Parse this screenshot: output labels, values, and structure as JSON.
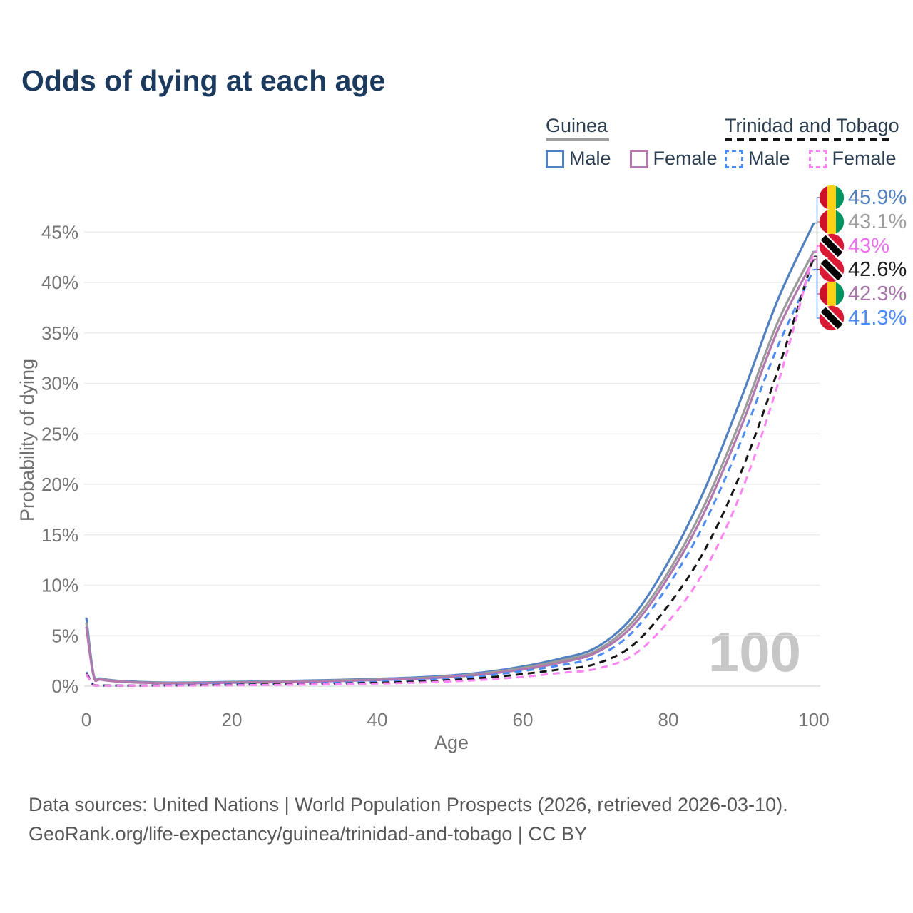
{
  "title": "Odds of dying at each age",
  "legend": {
    "groups": [
      {
        "title": "Guinea",
        "line_style": "solid",
        "underline_color": "#9e9e9e",
        "items": [
          {
            "label": "Male",
            "color": "#5181c1"
          },
          {
            "label": "Female",
            "color": "#b178ad"
          }
        ]
      },
      {
        "title": "Trinidad and Tobago",
        "line_style": "dashed",
        "underline_color": "#151515",
        "items": [
          {
            "label": "Male",
            "color": "#4d8cf5"
          },
          {
            "label": "Female",
            "color": "#fb85f3"
          }
        ]
      }
    ]
  },
  "chart_data": {
    "type": "line",
    "title": "Odds of dying at each age",
    "xlabel": "Age",
    "ylabel": "Probability of dying",
    "xlim": [
      0,
      100
    ],
    "ylim_percent": [
      0,
      47
    ],
    "grid": true,
    "legend_position": "top-right",
    "x_ticks": [
      0,
      20,
      40,
      60,
      80,
      100
    ],
    "y_ticks": [
      {
        "value": 0,
        "label": "0%"
      },
      {
        "value": 5,
        "label": "5%"
      },
      {
        "value": 10,
        "label": "10%"
      },
      {
        "value": 15,
        "label": "15%"
      },
      {
        "value": 20,
        "label": "20%"
      },
      {
        "value": 25,
        "label": "25%"
      },
      {
        "value": 30,
        "label": "30%"
      },
      {
        "value": 35,
        "label": "35%"
      },
      {
        "value": 40,
        "label": "40%"
      },
      {
        "value": 45,
        "label": "45%"
      }
    ],
    "ages": [
      0,
      1,
      2,
      5,
      10,
      15,
      20,
      25,
      30,
      35,
      40,
      45,
      50,
      55,
      60,
      65,
      70,
      75,
      80,
      85,
      90,
      95,
      100
    ],
    "series": [
      {
        "id": "guinea_male",
        "name": "Guinea Male",
        "country": "Guinea",
        "sex": "Male",
        "color": "#5181c1",
        "dash": "solid",
        "values_percent": [
          6.8,
          1.15,
          0.75,
          0.5,
          0.36,
          0.36,
          0.42,
          0.48,
          0.55,
          0.62,
          0.72,
          0.85,
          1.05,
          1.4,
          1.95,
          2.7,
          3.8,
          6.8,
          12.3,
          19.5,
          28.5,
          38.2,
          45.9
        ],
        "end_label": "45.9%"
      },
      {
        "id": "guinea_both",
        "name": "Guinea",
        "country": "Guinea",
        "sex": "Both",
        "color": "#9b9b9b",
        "dash": "solid",
        "values_percent": [
          6.3,
          1.05,
          0.7,
          0.46,
          0.33,
          0.32,
          0.38,
          0.43,
          0.5,
          0.57,
          0.66,
          0.78,
          0.97,
          1.3,
          1.8,
          2.5,
          3.5,
          6.3,
          11.3,
          18.0,
          26.5,
          36.0,
          43.1
        ],
        "end_label": "43.1%"
      },
      {
        "id": "guinea_female",
        "name": "Guinea Female",
        "country": "Guinea",
        "sex": "Female",
        "color": "#b178ad",
        "dash": "solid",
        "values_percent": [
          5.9,
          1.0,
          0.65,
          0.42,
          0.3,
          0.29,
          0.34,
          0.38,
          0.44,
          0.51,
          0.6,
          0.72,
          0.9,
          1.2,
          1.65,
          2.3,
          3.3,
          5.9,
          10.8,
          17.3,
          25.7,
          35.2,
          42.3
        ],
        "end_label": "42.3%"
      },
      {
        "id": "tt_male",
        "name": "Trinidad and Tobago Male",
        "country": "Trinidad and Tobago",
        "sex": "Male",
        "color": "#4d8cf5",
        "dash": "dashed",
        "values_percent": [
          1.4,
          0.12,
          0.08,
          0.06,
          0.08,
          0.12,
          0.18,
          0.22,
          0.27,
          0.33,
          0.42,
          0.55,
          0.75,
          1.05,
          1.5,
          2.05,
          2.9,
          5.3,
          10.0,
          16.2,
          24.3,
          33.6,
          41.3
        ],
        "end_label": "41.3%"
      },
      {
        "id": "tt_both",
        "name": "Trinidad and Tobago",
        "country": "Trinidad and Tobago",
        "sex": "Both",
        "color": "#161616",
        "dash": "dashed",
        "values_percent": [
          1.3,
          0.11,
          0.07,
          0.055,
          0.065,
          0.09,
          0.13,
          0.17,
          0.21,
          0.26,
          0.33,
          0.44,
          0.6,
          0.85,
          1.2,
          1.65,
          2.2,
          4.0,
          8.0,
          13.5,
          21.2,
          31.2,
          42.6
        ],
        "end_label": "42.6%"
      },
      {
        "id": "tt_female",
        "name": "Trinidad and Tobago Female",
        "country": "Trinidad and Tobago",
        "sex": "Female",
        "color": "#fb85f3",
        "dash": "dashed",
        "values_percent": [
          1.2,
          0.1,
          0.06,
          0.05,
          0.055,
          0.075,
          0.09,
          0.12,
          0.16,
          0.2,
          0.26,
          0.34,
          0.47,
          0.65,
          0.92,
          1.3,
          1.7,
          3.0,
          6.4,
          11.5,
          19.2,
          29.8,
          43.0
        ],
        "end_label": "43%"
      }
    ],
    "annotation": {
      "text": "100",
      "color": "#c7c7c7"
    }
  },
  "end_labels": [
    {
      "series": "guinea_male",
      "value": "45.9%",
      "color": "#5181c1",
      "flag": "guinea"
    },
    {
      "series": "guinea_both",
      "value": "43.1%",
      "color": "#9e9e9e",
      "flag": "guinea"
    },
    {
      "series": "tt_female",
      "value": "43%",
      "color": "#ef6ff0",
      "flag": "tt"
    },
    {
      "series": "tt_both",
      "value": "42.6%",
      "color": "#1f1f1f",
      "flag": "tt"
    },
    {
      "series": "guinea_female",
      "value": "42.3%",
      "color": "#a774a9",
      "flag": "guinea"
    },
    {
      "series": "tt_male",
      "value": "41.3%",
      "color": "#4a8bf5",
      "flag": "tt"
    }
  ],
  "footer": {
    "line1": "Data sources: United Nations | World Population Prospects (2026, retrieved 2026-03-10).",
    "line2": "GeoRank.org/life-expectancy/guinea/trinidad-and-tobago | CC BY"
  }
}
